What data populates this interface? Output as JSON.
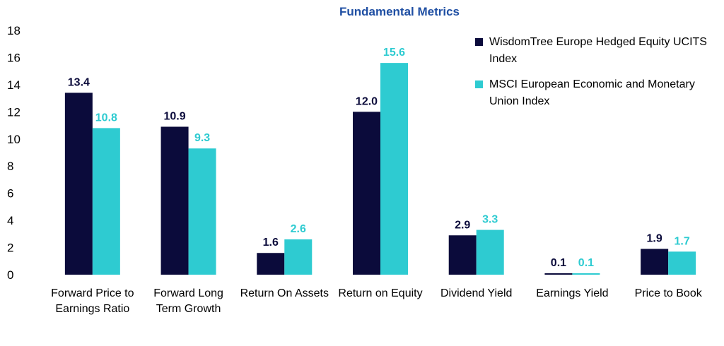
{
  "chart_data": {
    "type": "bar",
    "title": "Fundamental Metrics",
    "title_color": "#1f4fa3",
    "categories": [
      [
        "Forward Price to",
        "Earnings Ratio"
      ],
      [
        "Forward Long",
        "Term Growth"
      ],
      [
        "Return On Assets"
      ],
      [
        "Return on Equity"
      ],
      [
        "Dividend Yield"
      ],
      [
        "Earnings Yield"
      ],
      [
        "Price to Book"
      ]
    ],
    "series": [
      {
        "name": "WisdomTree Europe Hedged Equity UCITS Index",
        "color": "#0b0b3b",
        "values": [
          13.4,
          10.9,
          1.6,
          12.0,
          2.9,
          0.1,
          1.9
        ],
        "labels": [
          "13.4",
          "10.9",
          "1.6",
          "12.0",
          "2.9",
          "0.1",
          "1.9"
        ]
      },
      {
        "name": "MSCI European Economic and Monetary Union Index",
        "color": "#2ecbd1",
        "values": [
          10.8,
          9.3,
          2.6,
          15.6,
          3.3,
          0.1,
          1.7
        ],
        "labels": [
          "10.8",
          "9.3",
          "2.6",
          "15.6",
          "3.3",
          "0.1",
          "1.7"
        ]
      }
    ],
    "ylim": [
      0,
      18
    ],
    "yticks": [
      0,
      2,
      4,
      6,
      8,
      10,
      12,
      14,
      16,
      18
    ],
    "grid": false,
    "legend_position": "top-right"
  }
}
